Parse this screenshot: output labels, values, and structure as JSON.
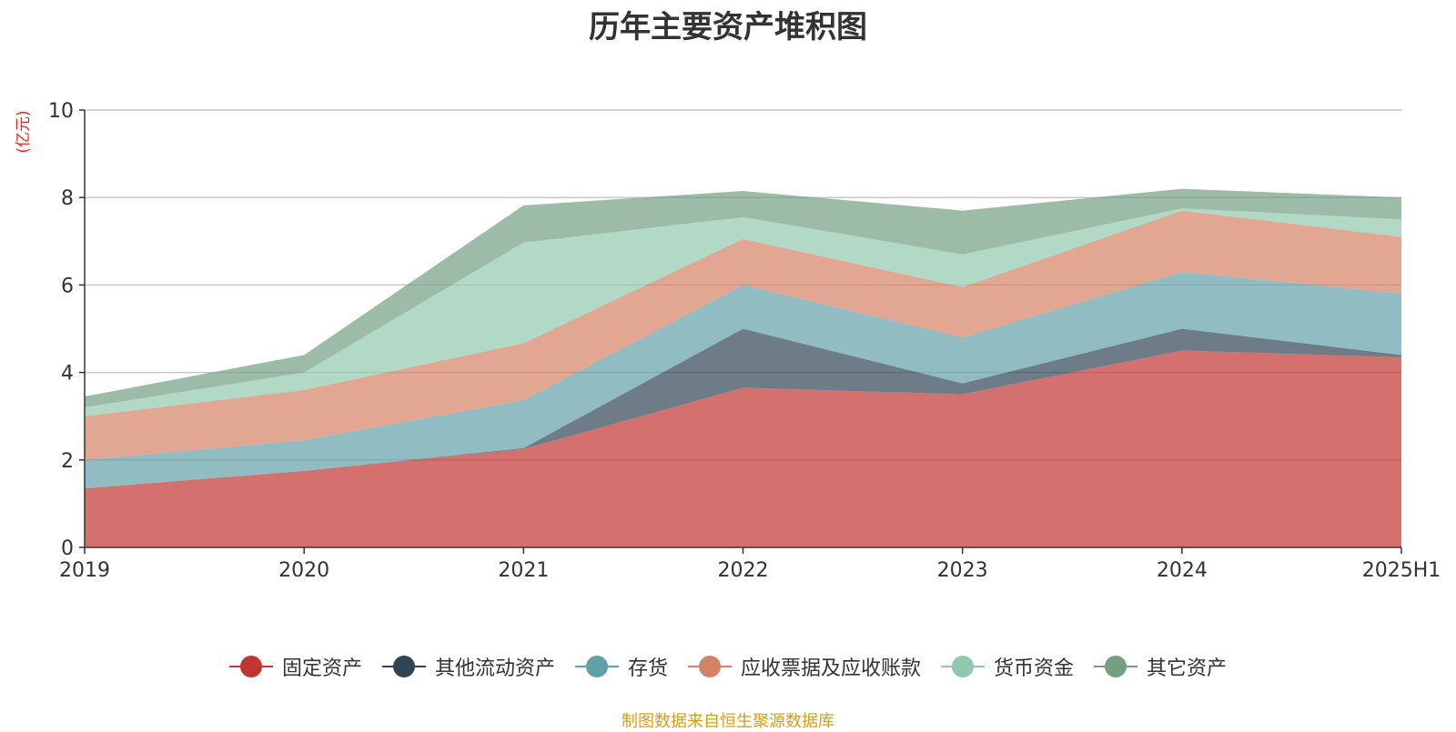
{
  "chart_data": {
    "type": "area",
    "stacked": true,
    "title": "历年主要资产堆积图",
    "ylabel": "(亿元)",
    "categories": [
      "2019",
      "2020",
      "2021",
      "2022",
      "2023",
      "2024",
      "2025H1"
    ],
    "ylim": [
      0,
      10
    ],
    "yticks": [
      0,
      2,
      4,
      6,
      8,
      10
    ],
    "grid": true,
    "legend_position": "bottom",
    "series": [
      {
        "name": "固定资产",
        "color": "#c23531",
        "values": [
          1.35,
          1.75,
          2.25,
          3.65,
          3.5,
          4.5,
          4.35
        ]
      },
      {
        "name": "其他流动资产",
        "color": "#2f4554",
        "values": [
          0.0,
          0.0,
          0.02,
          1.35,
          0.25,
          0.5,
          0.05
        ]
      },
      {
        "name": "存货",
        "color": "#61a0a8",
        "values": [
          0.65,
          0.7,
          1.1,
          1.0,
          1.05,
          1.3,
          1.4
        ]
      },
      {
        "name": "应收票据及应收账款",
        "color": "#d48265",
        "values": [
          1.0,
          1.15,
          1.3,
          1.05,
          1.15,
          1.4,
          1.3
        ]
      },
      {
        "name": "货币资金",
        "color": "#91c7ae",
        "values": [
          0.2,
          0.4,
          2.3,
          0.5,
          0.75,
          0.05,
          0.4
        ]
      },
      {
        "name": "其它资产",
        "color": "#749f83",
        "values": [
          0.25,
          0.4,
          0.85,
          0.6,
          1.0,
          0.45,
          0.5
        ]
      }
    ]
  },
  "source_note": "制图数据来自恒生聚源数据库"
}
